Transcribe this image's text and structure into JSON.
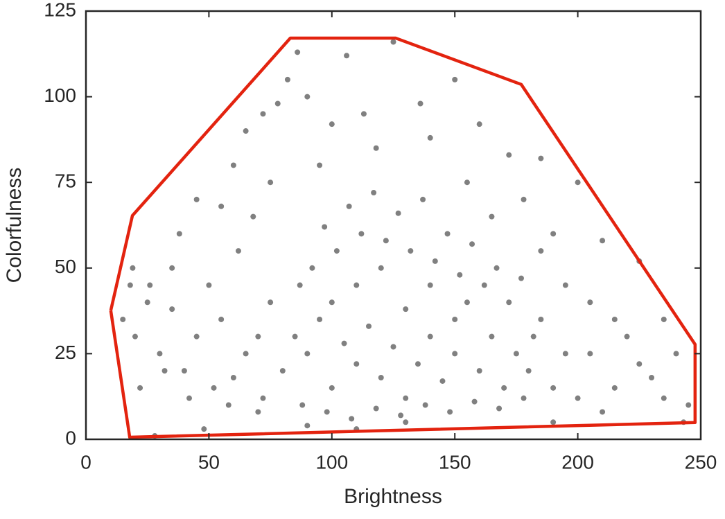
{
  "chart_data": {
    "type": "scatter",
    "xlabel": "Brightness",
    "ylabel": "Colorfulness",
    "xlim": [
      0,
      250
    ],
    "ylim": [
      0,
      125
    ],
    "xticks": [
      0,
      50,
      100,
      150,
      200,
      250
    ],
    "yticks": [
      0,
      25,
      50,
      75,
      100,
      125
    ],
    "series": [
      {
        "type": "scatter",
        "color": "#808080",
        "x": [
          80,
          85,
          90,
          95,
          100,
          100,
          105,
          110,
          110,
          115,
          120,
          120,
          125,
          130,
          130,
          135,
          140,
          140,
          145,
          150,
          150,
          155,
          160,
          165,
          170,
          175,
          180,
          185,
          190,
          195,
          70,
          75,
          65,
          60,
          72,
          88,
          98,
          108,
          118,
          128,
          138,
          148,
          158,
          168,
          178,
          92,
          102,
          112,
          122,
          132,
          142,
          152,
          162,
          172,
          182,
          87,
          97,
          107,
          117,
          127,
          137,
          147,
          157,
          167,
          177,
          55,
          50,
          45,
          40,
          35,
          30,
          25,
          22,
          20,
          18,
          15,
          28,
          48,
          38,
          45,
          55,
          60,
          65,
          72,
          78,
          82,
          86,
          90,
          100,
          106,
          113,
          125,
          136,
          150,
          160,
          172,
          185,
          190,
          200,
          205,
          210,
          215,
          220,
          225,
          230,
          235,
          240,
          245,
          243,
          210,
          200,
          215,
          225,
          235,
          190,
          195,
          205,
          62,
          68,
          75,
          95,
          118,
          140,
          155,
          165,
          178,
          185,
          130,
          110,
          90,
          70,
          58,
          52,
          42,
          32,
          26,
          19,
          35
        ],
        "values": [
          20,
          30,
          25,
          35,
          15,
          40,
          28,
          22,
          45,
          33,
          18,
          50,
          27,
          38,
          12,
          22,
          45,
          30,
          17,
          35,
          25,
          40,
          20,
          30,
          15,
          25,
          20,
          35,
          15,
          25,
          30,
          40,
          25,
          18,
          12,
          10,
          8,
          6,
          9,
          7,
          10,
          8,
          11,
          9,
          12,
          50,
          55,
          60,
          58,
          55,
          52,
          48,
          45,
          40,
          30,
          45,
          62,
          68,
          72,
          66,
          70,
          60,
          57,
          50,
          47,
          35,
          45,
          30,
          20,
          50,
          25,
          40,
          15,
          30,
          45,
          35,
          1,
          3,
          60,
          70,
          68,
          80,
          90,
          95,
          98,
          105,
          113,
          100,
          92,
          112,
          95,
          116,
          98,
          105,
          92,
          83,
          82,
          60,
          75,
          40,
          58,
          35,
          30,
          52,
          18,
          35,
          25,
          10,
          5,
          8,
          12,
          15,
          22,
          12,
          5,
          45,
          25,
          55,
          65,
          75,
          80,
          85,
          88,
          75,
          65,
          70,
          55,
          5,
          3,
          4,
          8,
          10,
          15,
          12,
          20,
          45,
          50,
          38
        ]
      },
      {
        "type": "line",
        "color": "#e3230f",
        "x": [
          10.1,
          18.9,
          83.1,
          126.0,
          177.0,
          247.7,
          247.7,
          17.8,
          10.1
        ],
        "values": [
          37.6,
          65.3,
          117.1,
          117.1,
          103.6,
          27.7,
          4.9,
          0.6,
          37.6
        ]
      }
    ]
  }
}
